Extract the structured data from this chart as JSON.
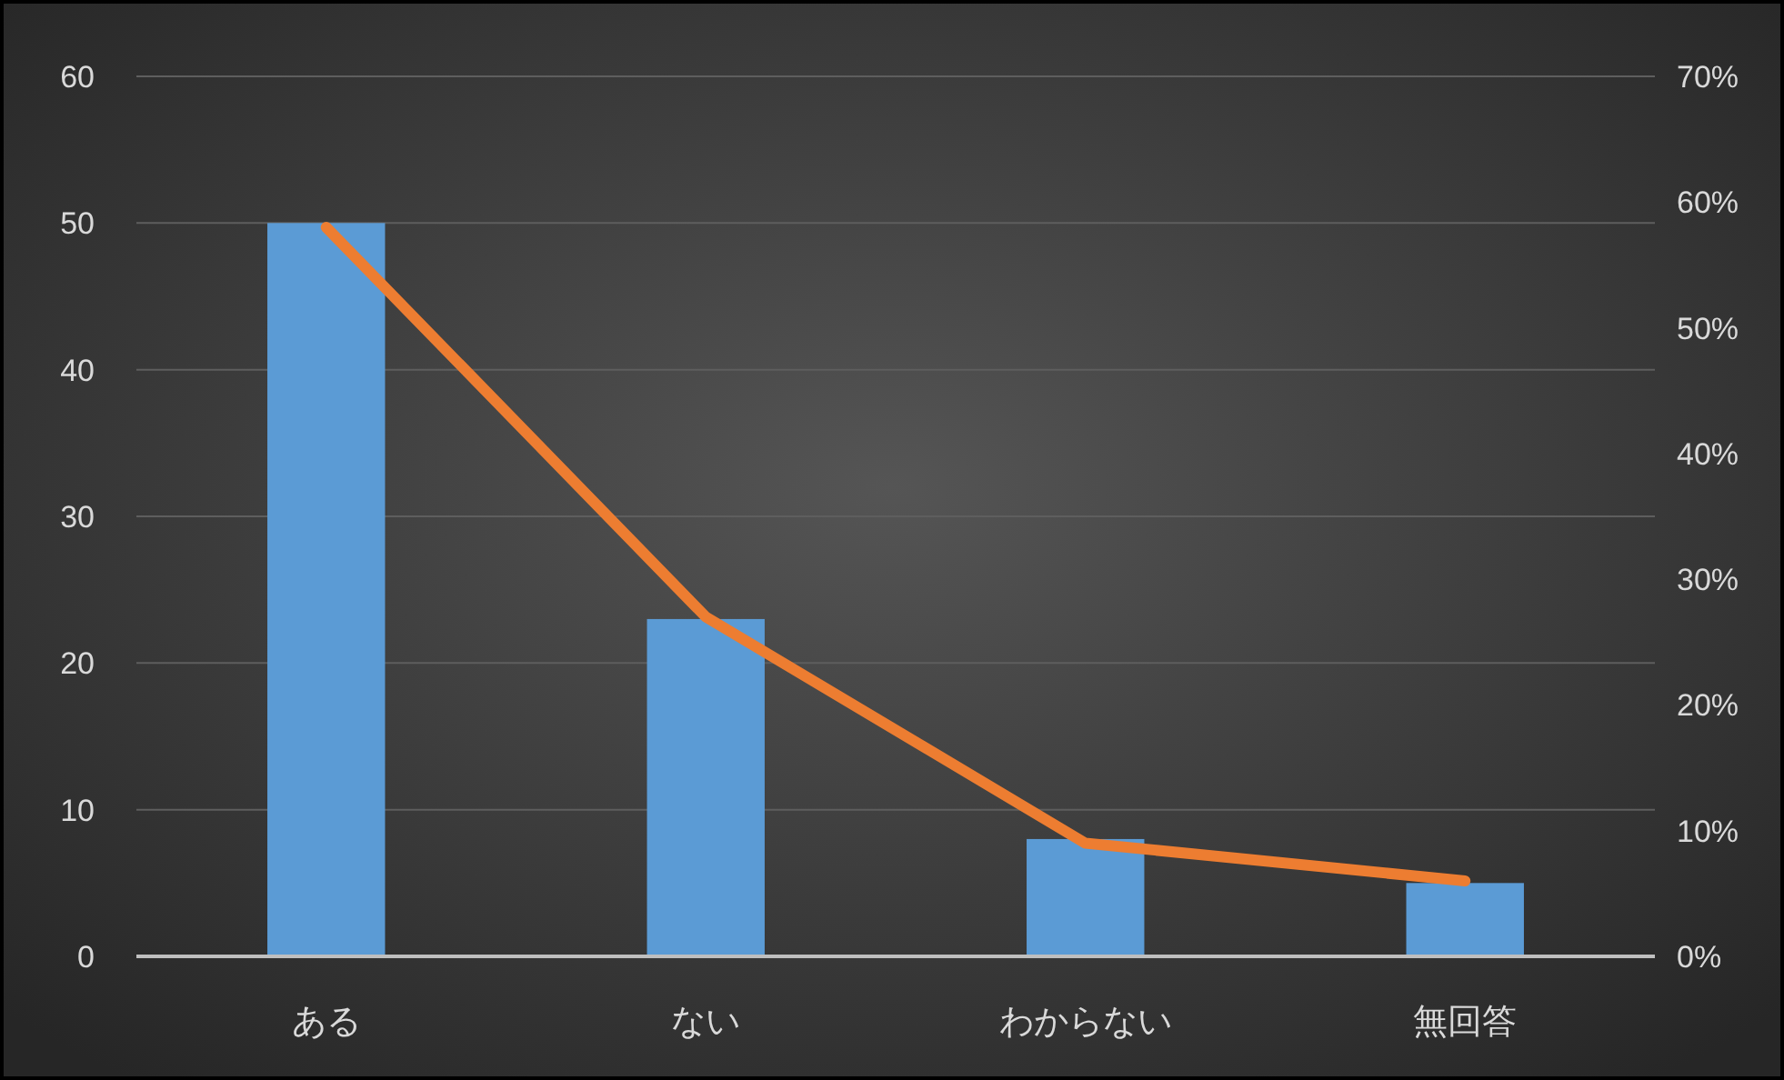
{
  "chart_data": {
    "type": "bar",
    "categories": [
      "ある",
      "ない",
      "わからない",
      "無回答"
    ],
    "series": [
      {
        "color": "#5b9bd5",
        "values": [
          50,
          23,
          8,
          5
        ]
      },
      {
        "type": "line",
        "axis": "y2",
        "color": "#ed7d31",
        "values": [
          58,
          27,
          9,
          6
        ]
      }
    ],
    "ylim": [
      0,
      60
    ],
    "yticks": [
      0,
      10,
      20,
      30,
      40,
      50,
      60
    ],
    "y2lim": [
      0,
      70
    ],
    "y2ticks": [
      {
        "value": 0,
        "label": "0%"
      },
      {
        "value": 10,
        "label": "10%"
      },
      {
        "value": 20,
        "label": "20%"
      },
      {
        "value": 30,
        "label": "30%"
      },
      {
        "value": 40,
        "label": "40%"
      },
      {
        "value": 50,
        "label": "50%"
      },
      {
        "value": 60,
        "label": "60%"
      },
      {
        "value": 70,
        "label": "70%"
      }
    ],
    "grid": "y"
  }
}
